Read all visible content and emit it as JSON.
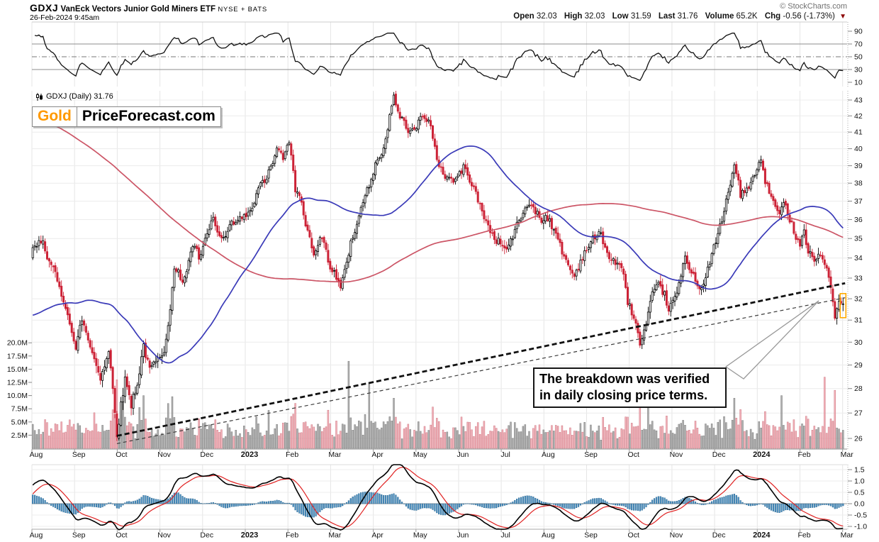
{
  "header": {
    "symbol": "GDXJ",
    "title": "VanEck Vectors Junior Gold Miners ETF",
    "exchange": "NYSE + BATS",
    "datetime": "26-Feb-2024 9:45am",
    "copyright": "© StockCharts.com",
    "quote": {
      "open_label": "Open",
      "open": "32.03",
      "high_label": "High",
      "high": "32.03",
      "low_label": "Low",
      "low": "31.59",
      "last_label": "Last",
      "last": "31.76",
      "volume_label": "Volume",
      "volume": "65.2K",
      "chg_label": "Chg",
      "chg": "-0.56 (-1.73%)"
    }
  },
  "icons": {
    "chg_down_triangle": "▼"
  },
  "main": {
    "series_label": "GDXJ (Daily) 31.76",
    "logo_gold": "Gold",
    "logo_rest": "PriceForecast.com",
    "annotation_line1": "The breakdown was verified",
    "annotation_line2": "in daily closing price terms."
  },
  "axes": {
    "months": [
      "Aug",
      "Sep",
      "Oct",
      "Nov",
      "Dec",
      "2023",
      "Feb",
      "Mar",
      "Apr",
      "May",
      "Jun",
      "Jul",
      "Aug",
      "Sep",
      "Oct",
      "Nov",
      "Dec",
      "2024",
      "Feb",
      "Mar"
    ],
    "year_labels": [
      "2023",
      "2024"
    ],
    "price_ticks": [
      43,
      42,
      41,
      40,
      39,
      38,
      37,
      36,
      35,
      34,
      33,
      32,
      31,
      30,
      29,
      28,
      27,
      26
    ],
    "volume_ticks": [
      "20.0M",
      "17.5M",
      "15.0M",
      "12.5M",
      "10.0M",
      "7.5M",
      "5.0M",
      "2.5M"
    ],
    "volume_tick_values_millions": [
      20,
      17.5,
      15,
      12.5,
      10,
      7.5,
      5,
      2.5
    ],
    "rsi_ticks": [
      90,
      70,
      50,
      30,
      10
    ],
    "macd_ticks": [
      "1.5",
      "1.0",
      "0.5",
      "0.0",
      "-0.5",
      "-1.0"
    ],
    "macd_tick_values": [
      1.5,
      1.0,
      0.5,
      0.0,
      -0.5,
      -1.0
    ]
  },
  "chart_data": [
    {
      "panel": "momentum",
      "type": "line",
      "indicator": "RSI-style momentum oscillator",
      "period": 14,
      "yrange": [
        10,
        90
      ],
      "reference_lines": {
        "overbought": 70,
        "midline": 50,
        "oversold": 30
      }
    },
    {
      "panel": "price",
      "type": "candlestick",
      "symbol": "GDXJ",
      "timeframe": "Daily",
      "last_close": 31.76,
      "log_scale": true,
      "yrange": [
        26,
        43.5
      ],
      "num_days": 396,
      "days_per_month": 20.8,
      "price_path_anchors": [
        [
          0,
          34.3
        ],
        [
          5,
          35.0
        ],
        [
          9,
          33.6
        ],
        [
          13,
          32.4
        ],
        [
          17,
          31.6
        ],
        [
          21,
          29.6
        ],
        [
          24,
          31.0
        ],
        [
          28,
          29.8
        ],
        [
          33,
          28.6
        ],
        [
          37,
          29.6
        ],
        [
          41,
          26.4
        ],
        [
          45,
          28.4
        ],
        [
          48,
          27.4
        ],
        [
          51,
          28.3
        ],
        [
          54,
          29.9
        ],
        [
          57,
          28.7
        ],
        [
          62,
          29.2
        ],
        [
          64,
          29.8
        ],
        [
          67,
          31.8
        ],
        [
          69,
          33.4
        ],
        [
          73,
          32.9
        ],
        [
          76,
          33.8
        ],
        [
          78,
          34.7
        ],
        [
          81,
          33.9
        ],
        [
          83,
          34.4
        ],
        [
          86,
          35.3
        ],
        [
          88,
          36.1
        ],
        [
          90,
          35.2
        ],
        [
          92,
          34.9
        ],
        [
          95,
          35.1
        ],
        [
          97,
          35.6
        ],
        [
          101,
          35.9
        ],
        [
          105,
          36.2
        ],
        [
          108,
          36.9
        ],
        [
          110,
          37.6
        ],
        [
          113,
          38.1
        ],
        [
          115,
          38.6
        ],
        [
          117,
          39.2
        ],
        [
          119,
          39.9
        ],
        [
          122,
          39.4
        ],
        [
          125,
          40.2
        ],
        [
          127,
          38.9
        ],
        [
          128,
          37.6
        ],
        [
          131,
          36.9
        ],
        [
          133,
          35.6
        ],
        [
          135,
          35.0
        ],
        [
          137,
          34.4
        ],
        [
          140,
          35.3
        ],
        [
          142,
          34.6
        ],
        [
          144,
          33.9
        ],
        [
          147,
          33.4
        ],
        [
          150,
          32.4
        ],
        [
          152,
          33.1
        ],
        [
          155,
          34.9
        ],
        [
          157,
          35.4
        ],
        [
          159,
          36.4
        ],
        [
          161,
          36.9
        ],
        [
          163,
          37.7
        ],
        [
          166,
          38.4
        ],
        [
          168,
          39.4
        ],
        [
          171,
          40.3
        ],
        [
          173,
          41.4
        ],
        [
          176,
          43.1
        ],
        [
          178,
          42.2
        ],
        [
          180,
          41.9
        ],
        [
          182,
          41.2
        ],
        [
          184,
          41.0
        ],
        [
          187,
          41.5
        ],
        [
          189,
          42.0
        ],
        [
          191,
          41.6
        ],
        [
          194,
          41.4
        ],
        [
          196,
          40.2
        ],
        [
          197,
          39.3
        ],
        [
          200,
          38.6
        ],
        [
          203,
          38.3
        ],
        [
          206,
          38.1
        ],
        [
          208,
          38.5
        ],
        [
          210,
          38.9
        ],
        [
          213,
          38.3
        ],
        [
          215,
          37.8
        ],
        [
          217,
          37.0
        ],
        [
          219,
          36.4
        ],
        [
          222,
          35.7
        ],
        [
          224,
          35.2
        ],
        [
          228,
          34.8
        ],
        [
          231,
          34.4
        ],
        [
          233,
          34.9
        ],
        [
          235,
          35.3
        ],
        [
          237,
          35.9
        ],
        [
          239,
          36.4
        ],
        [
          243,
          36.9
        ],
        [
          246,
          36.4
        ],
        [
          248,
          35.9
        ],
        [
          250,
          36.3
        ],
        [
          252,
          36.1
        ],
        [
          254,
          35.4
        ],
        [
          256,
          34.8
        ],
        [
          258,
          34.3
        ],
        [
          260,
          33.9
        ],
        [
          262,
          33.4
        ],
        [
          264,
          33.1
        ],
        [
          267,
          33.9
        ],
        [
          269,
          34.4
        ],
        [
          271,
          34.7
        ],
        [
          273,
          34.9
        ],
        [
          277,
          35.2
        ],
        [
          279,
          34.6
        ],
        [
          281,
          34.0
        ],
        [
          284,
          33.8
        ],
        [
          286,
          33.6
        ],
        [
          288,
          32.9
        ],
        [
          290,
          31.9
        ],
        [
          292,
          31.4
        ],
        [
          294,
          30.9
        ],
        [
          296,
          29.8
        ],
        [
          299,
          30.6
        ],
        [
          302,
          31.9
        ],
        [
          306,
          32.6
        ],
        [
          308,
          32.2
        ],
        [
          310,
          31.5
        ],
        [
          313,
          31.9
        ],
        [
          315,
          32.6
        ],
        [
          318,
          33.9
        ],
        [
          320,
          33.6
        ],
        [
          322,
          33.2
        ],
        [
          326,
          32.6
        ],
        [
          328,
          33.0
        ],
        [
          330,
          33.6
        ],
        [
          333,
          34.9
        ],
        [
          336,
          35.9
        ],
        [
          339,
          37.4
        ],
        [
          342,
          38.9
        ],
        [
          344,
          38.2
        ],
        [
          345,
          37.2
        ],
        [
          347,
          37.5
        ],
        [
          349,
          37.9
        ],
        [
          352,
          38.4
        ],
        [
          355,
          39.3
        ],
        [
          357,
          38.1
        ],
        [
          360,
          37.2
        ],
        [
          362,
          36.6
        ],
        [
          364,
          36.2
        ],
        [
          367,
          36.9
        ],
        [
          369,
          36.2
        ],
        [
          371,
          35.5
        ],
        [
          374,
          34.9
        ],
        [
          376,
          35.4
        ],
        [
          378,
          34.4
        ],
        [
          380,
          34.1
        ],
        [
          382,
          33.9
        ],
        [
          384,
          34.3
        ],
        [
          387,
          33.3
        ],
        [
          389,
          32.5
        ],
        [
          391,
          31.1
        ],
        [
          393,
          31.9
        ],
        [
          395,
          31.76
        ]
      ],
      "prehistory_anchors": [
        [
          -210,
          45
        ],
        [
          -160,
          48
        ],
        [
          -130,
          51
        ],
        [
          -105,
          49
        ],
        [
          -85,
          43
        ],
        [
          -65,
          37
        ],
        [
          -45,
          32.5
        ],
        [
          -25,
          29.2
        ],
        [
          -12,
          30.5
        ],
        [
          -4,
          32.8
        ]
      ],
      "overlays": [
        {
          "type": "sma",
          "period": 50,
          "color_key": "ma50"
        },
        {
          "type": "sma",
          "period": 200,
          "color_key": "ma200"
        }
      ],
      "trendlines": [
        {
          "style": "bold-dashed",
          "from_day_price": [
            41,
            26.1
          ],
          "to_day_price": [
            396,
            32.75
          ]
        },
        {
          "style": "thin-dashed",
          "from_day_price": [
            41,
            25.8
          ],
          "to_day_price": [
            396,
            32.05
          ]
        }
      ],
      "callout_tip_day_price": [
        383,
        31.9
      ],
      "last_candle_highlighted": true
    },
    {
      "panel": "volume",
      "type": "bar",
      "yrange_millions": [
        0,
        22
      ],
      "spikes_millions": [
        [
          41,
          13
        ],
        [
          44,
          9
        ],
        [
          54,
          10
        ],
        [
          154,
          16.5
        ],
        [
          164,
          12.5
        ],
        [
          176,
          9.5
        ],
        [
          296,
          9
        ],
        [
          342,
          9.5
        ],
        [
          365,
          10
        ],
        [
          386,
          13.5
        ],
        [
          391,
          11
        ]
      ]
    },
    {
      "panel": "macd",
      "type": "macd",
      "params": [
        12,
        26,
        9
      ],
      "yrange": [
        -1.45,
        1.8
      ]
    }
  ],
  "colors": {
    "candle_down": "#cc2236",
    "candle_up_fill": "#ffffff",
    "candle_stroke": "#000000",
    "ma50": "#3a3ab8",
    "ma200": "#cc5566",
    "vol_up": "rgba(150,150,150,0.75)",
    "vol_up_stroke": "#7d7d7d",
    "vol_down": "rgba(240,160,170,0.8)",
    "vol_down_stroke": "#cc7782",
    "hist_fill": "#4a8fc0",
    "hist_stroke": "#29648e",
    "macd_line": "#000000",
    "macd_signal": "#e02222",
    "rsi_line": "#111111",
    "grid": "#e5e5e5",
    "grid_strong": "#8c8c8c",
    "trendline_bold": "#111111",
    "trendline_thin": "#3a3a3a",
    "highlight": "#ffaa00",
    "logo_orange": "#ff9900",
    "chg_triangle": "#8b0000"
  },
  "seed": 42
}
